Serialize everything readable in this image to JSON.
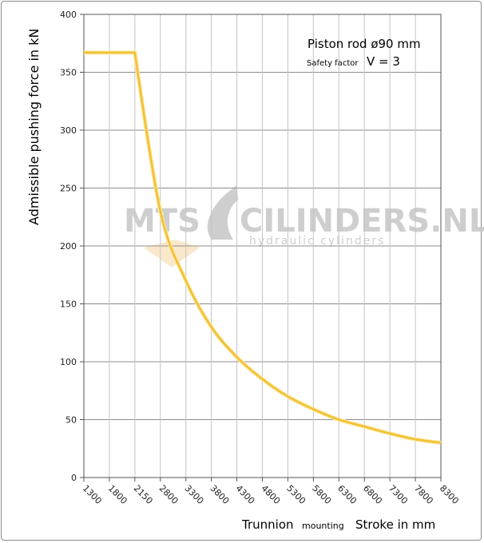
{
  "chart_data": {
    "type": "line",
    "ylabel": "Admissible pushing force in kN",
    "xlabel_parts": [
      "Trunnion",
      "mounting",
      "Stroke in mm"
    ],
    "annotation": {
      "title": "Piston rod ø90 mm",
      "safety_label": "Safety factor",
      "safety_value": "V = 3"
    },
    "ylim": [
      0,
      400
    ],
    "yticks": [
      0,
      50,
      100,
      150,
      200,
      250,
      300,
      350,
      400
    ],
    "xticks": [
      1300,
      1800,
      2150,
      2800,
      3300,
      3800,
      4300,
      4800,
      5300,
      5800,
      6300,
      6800,
      7300,
      7800,
      8300
    ],
    "grid": true,
    "series": [
      {
        "color": "#f2c037",
        "points": [
          [
            0,
            367
          ],
          [
            1,
            367
          ],
          [
            2,
            367
          ],
          [
            3,
            230
          ],
          [
            4,
            170
          ],
          [
            5,
            130
          ],
          [
            6,
            104
          ],
          [
            7,
            85
          ],
          [
            8,
            70
          ],
          [
            9,
            59
          ],
          [
            10,
            50
          ],
          [
            11,
            44
          ],
          [
            12,
            38
          ],
          [
            13,
            33
          ],
          [
            14,
            30
          ]
        ]
      }
    ]
  },
  "watermark": {
    "left": "MTS",
    "right": "CILINDERS.NL",
    "sub": "hydraulic cylinders"
  }
}
